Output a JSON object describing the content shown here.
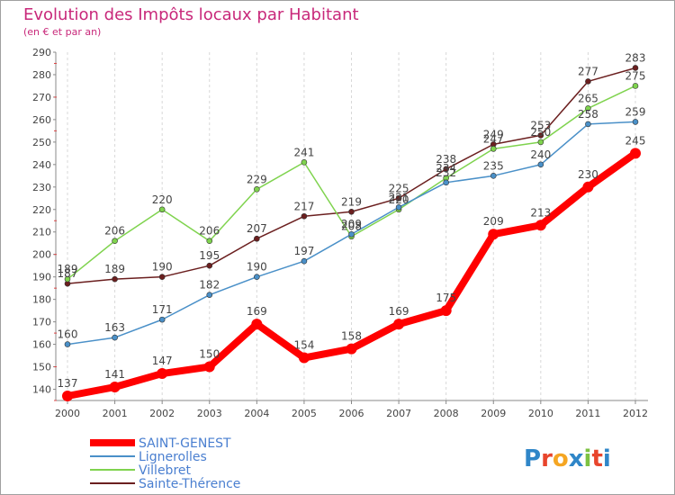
{
  "chart_data": {
    "type": "line",
    "title": "Evolution des Impôts locaux par Habitant",
    "subtitle": "(en € et par an)",
    "xlabel": "",
    "ylabel": "",
    "ylim": [
      135,
      290
    ],
    "ytick_step": 10,
    "grid": "vertical dashed",
    "legend_position": "bottom-left",
    "x": [
      "2000",
      "2001",
      "2002",
      "2003",
      "2004",
      "2005",
      "2006",
      "2007",
      "2008",
      "2009",
      "2010",
      "2011",
      "2012"
    ],
    "series": [
      {
        "name": "Sainte-Thérence",
        "color": "#6b1f1f",
        "values": [
          187,
          189,
          190,
          195,
          207,
          217,
          219,
          225,
          238,
          249,
          253,
          277,
          283
        ]
      },
      {
        "name": "Villebret",
        "color": "#7fd34e",
        "values": [
          189,
          206,
          220,
          206,
          229,
          241,
          208,
          220,
          234,
          247,
          250,
          265,
          275
        ]
      },
      {
        "name": "Lignerolles",
        "color": "#4a90c8",
        "values": [
          160,
          163,
          171,
          182,
          190,
          197,
          209,
          221,
          232,
          235,
          240,
          258,
          259
        ]
      },
      {
        "name": "SAINT-GENEST",
        "color": "#ff0000",
        "values": [
          137,
          141,
          147,
          150,
          169,
          154,
          158,
          169,
          175,
          209,
          213,
          230,
          245
        ]
      }
    ],
    "legend": [
      "SAINT-GENEST",
      "Lignerolles",
      "Villebret",
      "Sainte-Thérence"
    ]
  },
  "logo": {
    "text": "Proxiti"
  }
}
